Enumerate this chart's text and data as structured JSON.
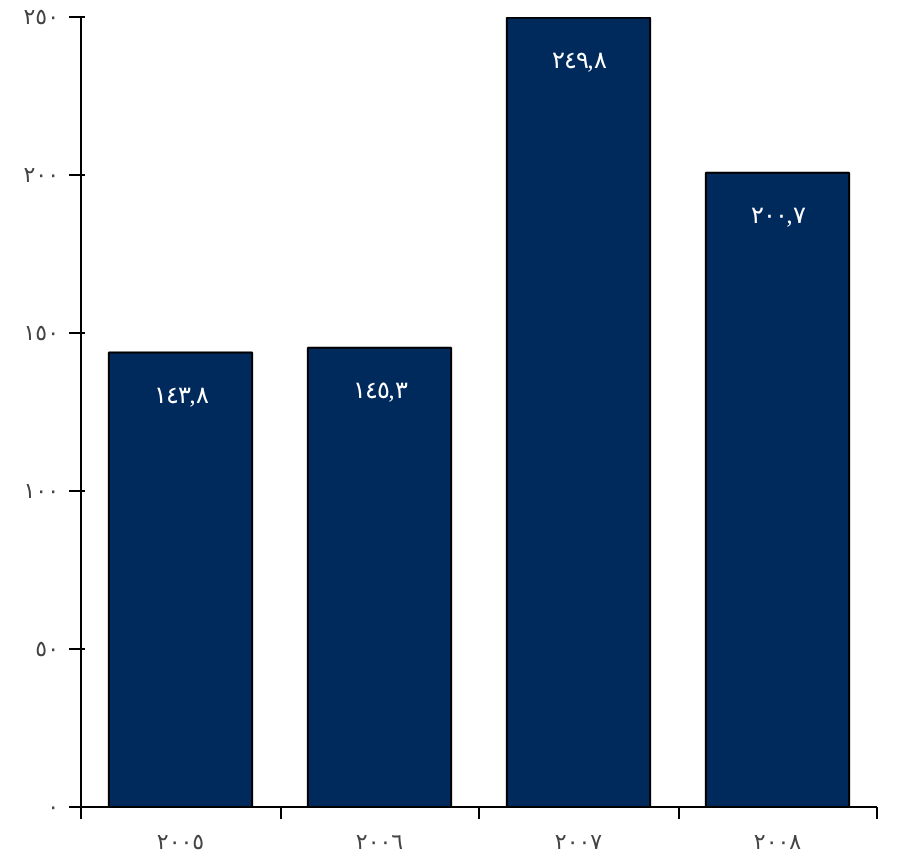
{
  "chart_data": {
    "type": "bar",
    "categories": [
      "٢٠٠٥",
      "٢٠٠٦",
      "٢٠٠٧",
      "٢٠٠٨"
    ],
    "values": [
      143.8,
      145.3,
      249.8,
      200.7
    ],
    "color": "#002a5c",
    "value_labels": [
      "١٤٣,٨",
      "١٤٥,٣",
      "٢٤٩,٨",
      "٢٠٠,٧"
    ],
    "ylim": [
      0,
      250
    ],
    "yticks": [
      {
        "value": 0,
        "label": "٠"
      },
      {
        "value": 50,
        "label": "٥٠"
      },
      {
        "value": 100,
        "label": "١٠٠"
      },
      {
        "value": 150,
        "label": "١٥٠"
      },
      {
        "value": 200,
        "label": "٢٠٠"
      },
      {
        "value": 250,
        "label": "٢٥٠"
      }
    ],
    "grid": false
  }
}
